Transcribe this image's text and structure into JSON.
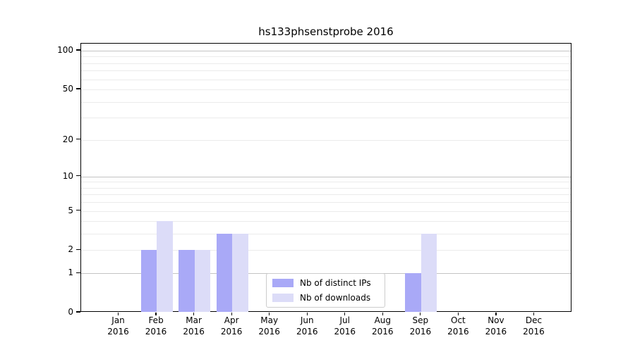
{
  "chart_data": {
    "type": "bar",
    "title": "hs133phsenstprobe 2016",
    "x_year": "2016",
    "categories": [
      "Jan",
      "Feb",
      "Mar",
      "Apr",
      "May",
      "Jun",
      "Jul",
      "Aug",
      "Sep",
      "Oct",
      "Nov",
      "Dec"
    ],
    "series": [
      {
        "name": "Nb of distinct IPs",
        "color": "#a9a9f7",
        "values": [
          0,
          2,
          2,
          3,
          0,
          0,
          0,
          0,
          1,
          0,
          0,
          0
        ]
      },
      {
        "name": "Nb of downloads",
        "color": "#dcdcf8",
        "values": [
          0,
          4,
          2,
          3,
          0,
          0,
          0,
          0,
          3,
          0,
          0,
          0
        ]
      }
    ],
    "y_scale": "log1p",
    "y_ticks": [
      0,
      1,
      2,
      5,
      10,
      20,
      50,
      100
    ],
    "ylim": [
      0,
      113
    ],
    "xlabel": "",
    "ylabel": "",
    "grid": {
      "major": [
        1,
        10,
        100
      ],
      "minor": [
        2,
        3,
        4,
        5,
        6,
        7,
        8,
        9,
        20,
        30,
        40,
        50,
        60,
        70,
        80,
        90
      ]
    },
    "legend": {
      "position": "lower-center",
      "entries": [
        "Nb of distinct IPs",
        "Nb of downloads"
      ]
    },
    "colors": {
      "axis": "#000000",
      "grid_major": "#c3c3c3",
      "grid_minor": "#ebebeb",
      "background": "#ffffff"
    }
  }
}
